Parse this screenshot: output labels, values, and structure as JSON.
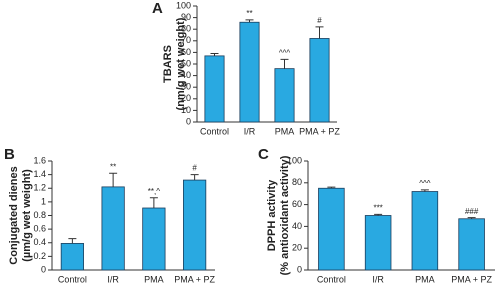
{
  "chart_data": [
    {
      "type": "bar",
      "panel": "A",
      "ylabel": [
        "TBARS",
        "(nm/g wet weight)"
      ],
      "categories": [
        "Control",
        "I/R",
        "PMA",
        "PMA + PZ"
      ],
      "values": [
        57,
        86,
        46,
        72
      ],
      "errors": [
        2,
        2,
        8,
        10
      ],
      "annotations": [
        null,
        "**",
        "^^^",
        "#"
      ],
      "color": "#29a9e1",
      "ylim": [
        0,
        100
      ],
      "yticks": [
        0,
        10,
        20,
        30,
        40,
        50,
        60,
        70,
        80,
        90,
        100
      ]
    },
    {
      "type": "bar",
      "panel": "B",
      "ylabel": [
        "Conjugated dienes",
        "(µm/g wet weight)"
      ],
      "categories": [
        "Control",
        "I/R",
        "PMA",
        "PMA + PZ"
      ],
      "values": [
        0.39,
        1.22,
        0.91,
        1.32
      ],
      "errors": [
        0.07,
        0.2,
        0.15,
        0.08
      ],
      "annotations": [
        null,
        "**",
        "**,^",
        "#"
      ],
      "color": "#29a9e1",
      "ylim": [
        0,
        1.6
      ],
      "yticks": [
        0,
        0.2,
        0.4,
        0.6,
        0.8,
        1,
        1.2,
        1.4,
        1.6
      ]
    },
    {
      "type": "bar",
      "panel": "C",
      "ylabel": [
        "DPPH activity",
        "(% antioxidant activity)"
      ],
      "categories": [
        "Control",
        "I/R",
        "PMA",
        "PMA + PZ"
      ],
      "values": [
        75,
        50,
        72,
        47
      ],
      "errors": [
        1,
        1,
        1.5,
        1
      ],
      "annotations": [
        null,
        "***",
        "^^^",
        "###"
      ],
      "color": "#29a9e1",
      "ylim": [
        0,
        100
      ],
      "yticks": [
        0,
        20,
        40,
        60,
        80,
        100
      ]
    }
  ]
}
